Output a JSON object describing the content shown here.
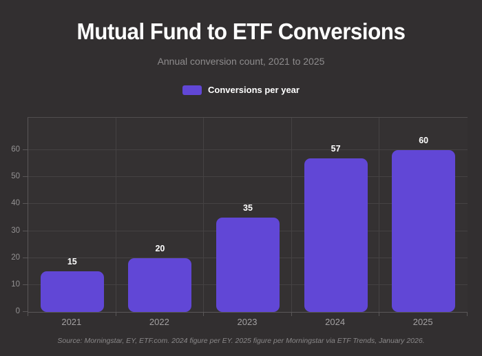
{
  "page": {
    "title": "Mutual Fund to ETF Conversions",
    "subtitle": "Annual conversion count, 2021 to 2025",
    "source_note": "Source: Morningstar, EY, ETF.com. 2024 figure per EY. 2025 figure per Morningstar via ETF Trends, January 2026."
  },
  "legend": {
    "label": "Conversions per year",
    "swatch_color": "#6147d6"
  },
  "colors": {
    "background": "#322f30",
    "plot_background": "#343132",
    "bar": "#6147d6",
    "gridline": "#454243",
    "axis": "#5a5758",
    "title_text": "#ffffff",
    "subtitle_text": "#8e8c8d",
    "tick_text": "#949293",
    "category_text": "#a3a1a2",
    "value_label_text": "#ffffff",
    "source_text": "#8a8889"
  },
  "chart_data": {
    "type": "bar",
    "title": "Mutual Fund to ETF Conversions",
    "subtitle": "Annual conversion count, 2021 to 2025",
    "categories": [
      "2021",
      "2022",
      "2023",
      "2024",
      "2025"
    ],
    "series": [
      {
        "name": "Conversions per year",
        "values": [
          15,
          20,
          35,
          57,
          60
        ]
      }
    ],
    "value_labels": [
      "15",
      "20",
      "35",
      "57",
      "60"
    ],
    "xlabel": "",
    "ylabel": "",
    "ylim": [
      0,
      72
    ],
    "yticks": [
      0,
      10,
      20,
      30,
      40,
      50,
      60
    ],
    "grid": true,
    "legend_position": "top",
    "bar_color": "#6147d6"
  }
}
